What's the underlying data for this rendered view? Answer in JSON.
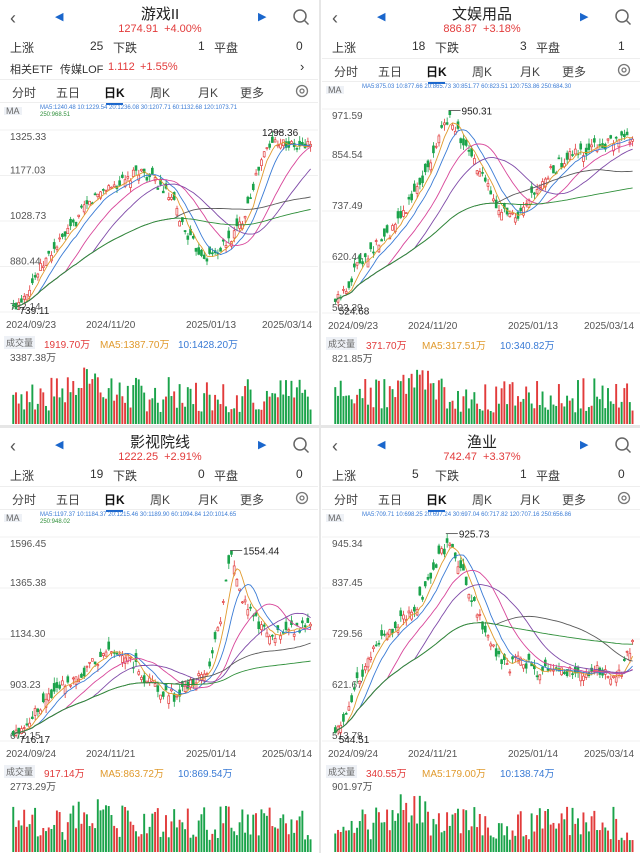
{
  "colors": {
    "up": "#e23b3b",
    "down": "#1aa34a",
    "accent": "#1a66cc"
  },
  "tabs": [
    "分时",
    "五日",
    "日K",
    "周K",
    "月K",
    "更多"
  ],
  "labels": {
    "rise": "上涨",
    "fall": "下跌",
    "flat": "平盘",
    "ma_button": "MA",
    "vol_button": "成交量",
    "related_etf": "相关ETF",
    "lof": "传媒LOF"
  },
  "icons": [
    "back-icon",
    "prev-arrow-icon",
    "next-arrow-icon",
    "search-icon",
    "gear-icon",
    "chevron-right-icon",
    "link-icon"
  ],
  "panels": [
    {
      "title": "游戏II",
      "price": "1274.91",
      "change": "+4.00%",
      "rise": "25",
      "fall": "1",
      "flat": "0",
      "etf": {
        "price": "1.112",
        "change": "+1.55%"
      },
      "ma_line1": "MA5:1240.48  10:1229.54  20:1236.08  30:1207.71  60:1132.68  120:1073.71",
      "ma_line2": "250:968.51",
      "y_ticks": [
        "1325.33",
        "1177.03",
        "1028.73",
        "880.44",
        "732.14"
      ],
      "high_label": "1298.36",
      "low_label": "739.11",
      "dates": [
        "2024/09/23",
        "2024/11/20",
        "2025/01/13",
        "2025/03/14"
      ],
      "vol_label": "1919.70万",
      "vol_ma5": "MA5:1387.70万",
      "vol_ma10": "10:1428.20万",
      "vol_max": "3387.38万"
    },
    {
      "title": "文娱用品",
      "price": "886.87",
      "change": "+3.18%",
      "rise": "18",
      "fall": "3",
      "flat": "1",
      "ma_line1": "MA5:875.03  10:877.66  20:865.73  30:851.77  60:823.51  120:753.86  250:684.30",
      "ma_line2": "",
      "y_ticks": [
        "971.59",
        "854.54",
        "737.49",
        "620.44",
        "503.39"
      ],
      "high_label": "950.31",
      "low_label": "524.68",
      "dates": [
        "2024/09/23",
        "2024/11/20",
        "2025/01/13",
        "2025/03/14"
      ],
      "vol_label": "371.70万",
      "vol_ma5": "MA5:317.51万",
      "vol_ma10": "10:340.82万",
      "vol_max": "821.85万"
    },
    {
      "title": "影视院线",
      "price": "1222.25",
      "change": "+2.91%",
      "rise": "19",
      "fall": "0",
      "flat": "0",
      "ma_line1": "MA5:1197.37  10:1184.37  20:1215.46  30:1189.90  60:1094.84  120:1014.65",
      "ma_line2": "250:948.02",
      "y_ticks": [
        "1596.45",
        "1365.38",
        "1134.30",
        "903.23",
        "672.15"
      ],
      "high_label": "1554.44",
      "low_label": "716.17",
      "dates": [
        "2024/09/24",
        "2024/11/21",
        "2025/01/14",
        "2025/03/14"
      ],
      "vol_label": "917.14万",
      "vol_ma5": "MA5:863.72万",
      "vol_ma10": "10:869.54万",
      "vol_max": "2773.29万"
    },
    {
      "title": "渔业",
      "price": "742.47",
      "change": "+3.37%",
      "rise": "5",
      "fall": "1",
      "flat": "0",
      "ma_line1": "MA5:709.71  10:698.25  20:697.24  30:697.04  60:717.82  120:707.16  250:656.86",
      "ma_line2": "",
      "y_ticks": [
        "945.34",
        "837.45",
        "729.56",
        "621.67",
        "513.78"
      ],
      "high_label": "925.73",
      "low_label": "544.51",
      "dates": [
        "2024/09/24",
        "2024/11/21",
        "2025/01/14",
        "2025/03/14"
      ],
      "vol_label": "340.55万",
      "vol_ma5": "MA5:179.00万",
      "vol_ma10": "10:138.74万",
      "vol_max": "901.97万"
    }
  ]
}
